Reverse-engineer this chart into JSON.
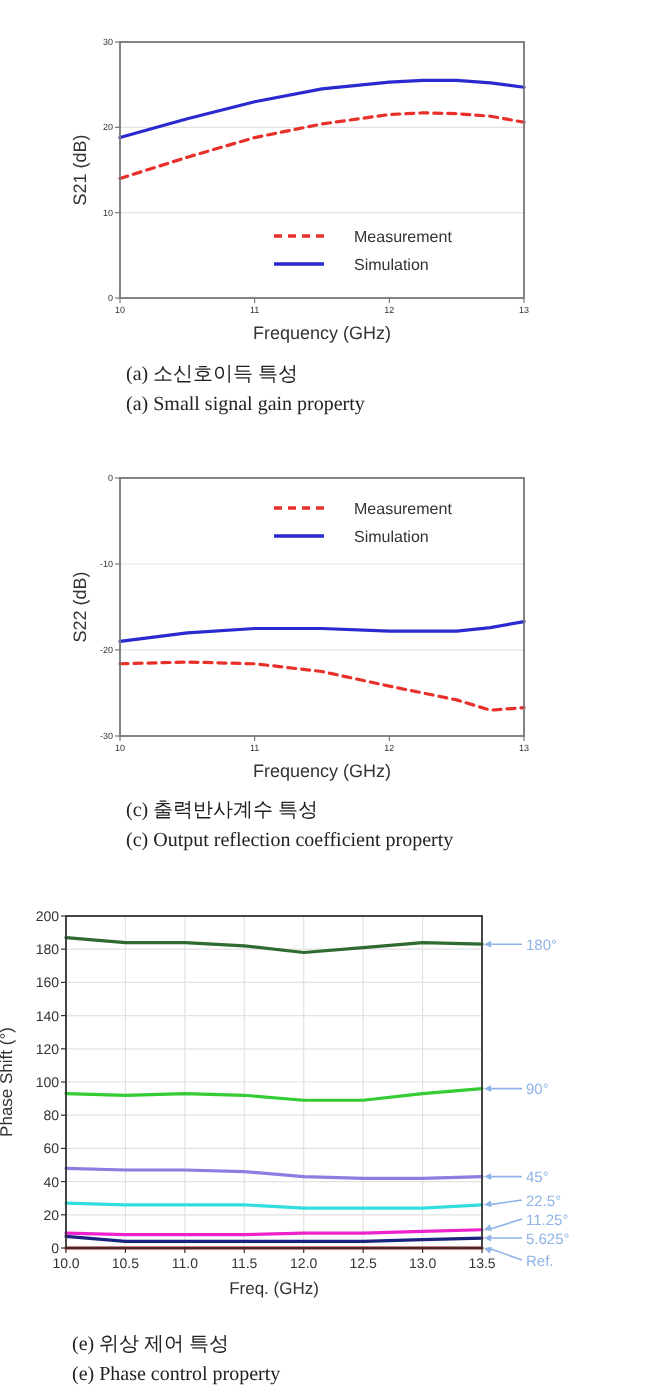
{
  "chart_data": [
    {
      "type": "line",
      "title": "(a) 소신호이득 특성",
      "subtitle": "(a) Small signal gain property",
      "xlabel": "Frequency (GHz)",
      "ylabel": "S21 (dB)",
      "xlim": [
        10,
        13
      ],
      "ylim": [
        0,
        30
      ],
      "xticks": [
        10,
        11,
        12,
        13
      ],
      "yticks": [
        0,
        10,
        20,
        30
      ],
      "grid": "y",
      "legend": "bottom right",
      "x": [
        10,
        10.5,
        11,
        11.5,
        12,
        12.25,
        12.5,
        12.75,
        13
      ],
      "series": [
        {
          "name": "Measurement",
          "color": "#e8302a",
          "line_style": "dashed",
          "values": [
            14,
            16.5,
            18.8,
            20.4,
            21.5,
            21.7,
            21.6,
            21.3,
            20.6
          ]
        },
        {
          "name": "Simulation",
          "color": "#2a2ad0",
          "line_style": "solid",
          "values": [
            18.8,
            21,
            23,
            24.5,
            25.3,
            25.5,
            25.5,
            25.2,
            24.7
          ]
        }
      ]
    },
    {
      "type": "line",
      "title": "(c) 출력반사계수 특성",
      "subtitle": "(c) Output reflection coefficient property",
      "xlabel": "Frequency (GHz)",
      "ylabel": "S22 (dB)",
      "xlim": [
        10,
        13
      ],
      "ylim": [
        -30,
        0
      ],
      "xticks": [
        10,
        11,
        12,
        13
      ],
      "yticks": [
        -30,
        -20,
        -10,
        0
      ],
      "grid": "y",
      "legend": "top right",
      "x": [
        10,
        10.5,
        11,
        11.5,
        12,
        12.5,
        12.75,
        13
      ],
      "series": [
        {
          "name": "Measurement",
          "color": "#e8302a",
          "line_style": "dashed",
          "values": [
            -21.6,
            -21.4,
            -21.6,
            -22.5,
            -24.2,
            -25.8,
            -27,
            -26.7
          ]
        },
        {
          "name": "Simulation",
          "color": "#2a2ad0",
          "line_style": "solid",
          "values": [
            -19,
            -18,
            -17.5,
            -17.5,
            -17.8,
            -17.8,
            -17.4,
            -16.7
          ]
        }
      ]
    },
    {
      "type": "line",
      "title": "(e) 위상 제어 특성",
      "subtitle": "(e) Phase control property",
      "xlabel": "Freq. (GHz)",
      "ylabel": "Phase Shift (°)",
      "xlim": [
        10,
        13.5
      ],
      "ylim": [
        0,
        200
      ],
      "xticks": [
        {
          "value": 10,
          "label": "10.0"
        },
        {
          "value": 10.5,
          "label": "10.5"
        },
        {
          "value": 11,
          "label": "11.0"
        },
        {
          "value": 11.5,
          "label": "11.5"
        },
        {
          "value": 12,
          "label": "12.0"
        },
        {
          "value": 12.5,
          "label": "12.5"
        },
        {
          "value": 13,
          "label": "13.0"
        },
        {
          "value": 13.5,
          "label": "13.5"
        }
      ],
      "yticks": [
        0,
        20,
        40,
        60,
        80,
        100,
        120,
        140,
        160,
        180,
        200
      ],
      "grid": true,
      "legend": false,
      "x": [
        10,
        10.5,
        11,
        11.5,
        12,
        12.5,
        13,
        13.5
      ],
      "series": [
        {
          "name": "180°",
          "color": "#2e6b2e",
          "values": [
            187,
            184,
            184,
            182,
            178,
            181,
            184,
            183
          ]
        },
        {
          "name": "90°",
          "color": "#33cc33",
          "values": [
            93,
            92,
            93,
            92,
            89,
            89,
            93,
            96
          ]
        },
        {
          "name": "45°",
          "color": "#8a7fe0",
          "values": [
            48,
            47,
            47,
            46,
            43,
            42,
            42,
            43
          ]
        },
        {
          "name": "22.5°",
          "color": "#33dddd",
          "values": [
            27,
            26,
            26,
            26,
            24,
            24,
            24,
            26
          ]
        },
        {
          "name": "11.25°",
          "color": "#ee22cc",
          "values": [
            9,
            8,
            8,
            8,
            9,
            9,
            10,
            11
          ]
        },
        {
          "name": "5.625°",
          "color": "#1a237e",
          "values": [
            7,
            4,
            4,
            4,
            4,
            4,
            5,
            6
          ]
        },
        {
          "name": "Ref.",
          "color": "#aa0000",
          "values": [
            0,
            0,
            0,
            0,
            0,
            0,
            0,
            0
          ]
        }
      ]
    }
  ]
}
